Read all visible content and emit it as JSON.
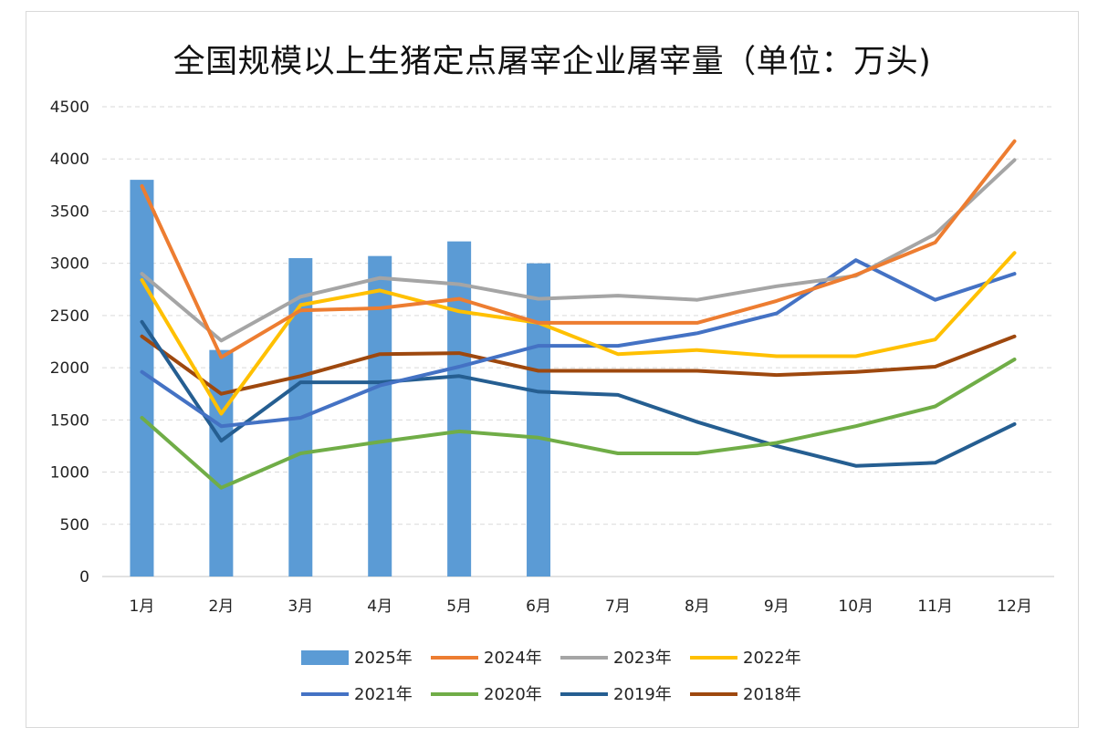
{
  "chart_data": {
    "type": "bar+line",
    "title": "全国规模以上生猪定点屠宰企业屠宰量（单位：万头)",
    "categories": [
      "1月",
      "2月",
      "3月",
      "4月",
      "5月",
      "6月",
      "7月",
      "8月",
      "9月",
      "10月",
      "11月",
      "12月"
    ],
    "ylim": [
      0,
      4500
    ],
    "yticks": [
      0,
      500,
      1000,
      1500,
      2000,
      2500,
      3000,
      3500,
      4000,
      4500
    ],
    "grid": true,
    "legend_position": "bottom",
    "bar_series": {
      "name": "2025年",
      "color": "#5B9BD5",
      "values": [
        3800,
        2170,
        3050,
        3070,
        3210,
        3000,
        null,
        null,
        null,
        null,
        null,
        null
      ]
    },
    "line_series": [
      {
        "name": "2024年",
        "color": "#ED7D31",
        "values": [
          3740,
          2100,
          2550,
          2570,
          2660,
          2430,
          2430,
          2430,
          2640,
          2890,
          3200,
          4170
        ]
      },
      {
        "name": "2023年",
        "color": "#A5A5A5",
        "values": [
          2900,
          2260,
          2680,
          2860,
          2800,
          2660,
          2690,
          2650,
          2780,
          2880,
          3280,
          3990
        ]
      },
      {
        "name": "2022年",
        "color": "#FFC000",
        "values": [
          2840,
          1560,
          2600,
          2740,
          2540,
          2430,
          2130,
          2170,
          2110,
          2110,
          2270,
          3100
        ]
      },
      {
        "name": "2021年",
        "color": "#4472C4",
        "values": [
          1960,
          1440,
          1520,
          1830,
          2010,
          2210,
          2210,
          2330,
          2520,
          3030,
          2650,
          2900
        ]
      },
      {
        "name": "2020年",
        "color": "#70AD47",
        "values": [
          1520,
          850,
          1180,
          1290,
          1390,
          1330,
          1180,
          1180,
          1280,
          1440,
          1630,
          2080
        ]
      },
      {
        "name": "2019年",
        "color": "#255E91",
        "values": [
          2440,
          1300,
          1860,
          1860,
          1920,
          1770,
          1740,
          1480,
          1250,
          1060,
          1090,
          1460
        ]
      },
      {
        "name": "2018年",
        "color": "#9E480E",
        "values": [
          2300,
          1750,
          1920,
          2130,
          2140,
          1970,
          1970,
          1970,
          1930,
          1960,
          2010,
          2300
        ]
      }
    ]
  }
}
